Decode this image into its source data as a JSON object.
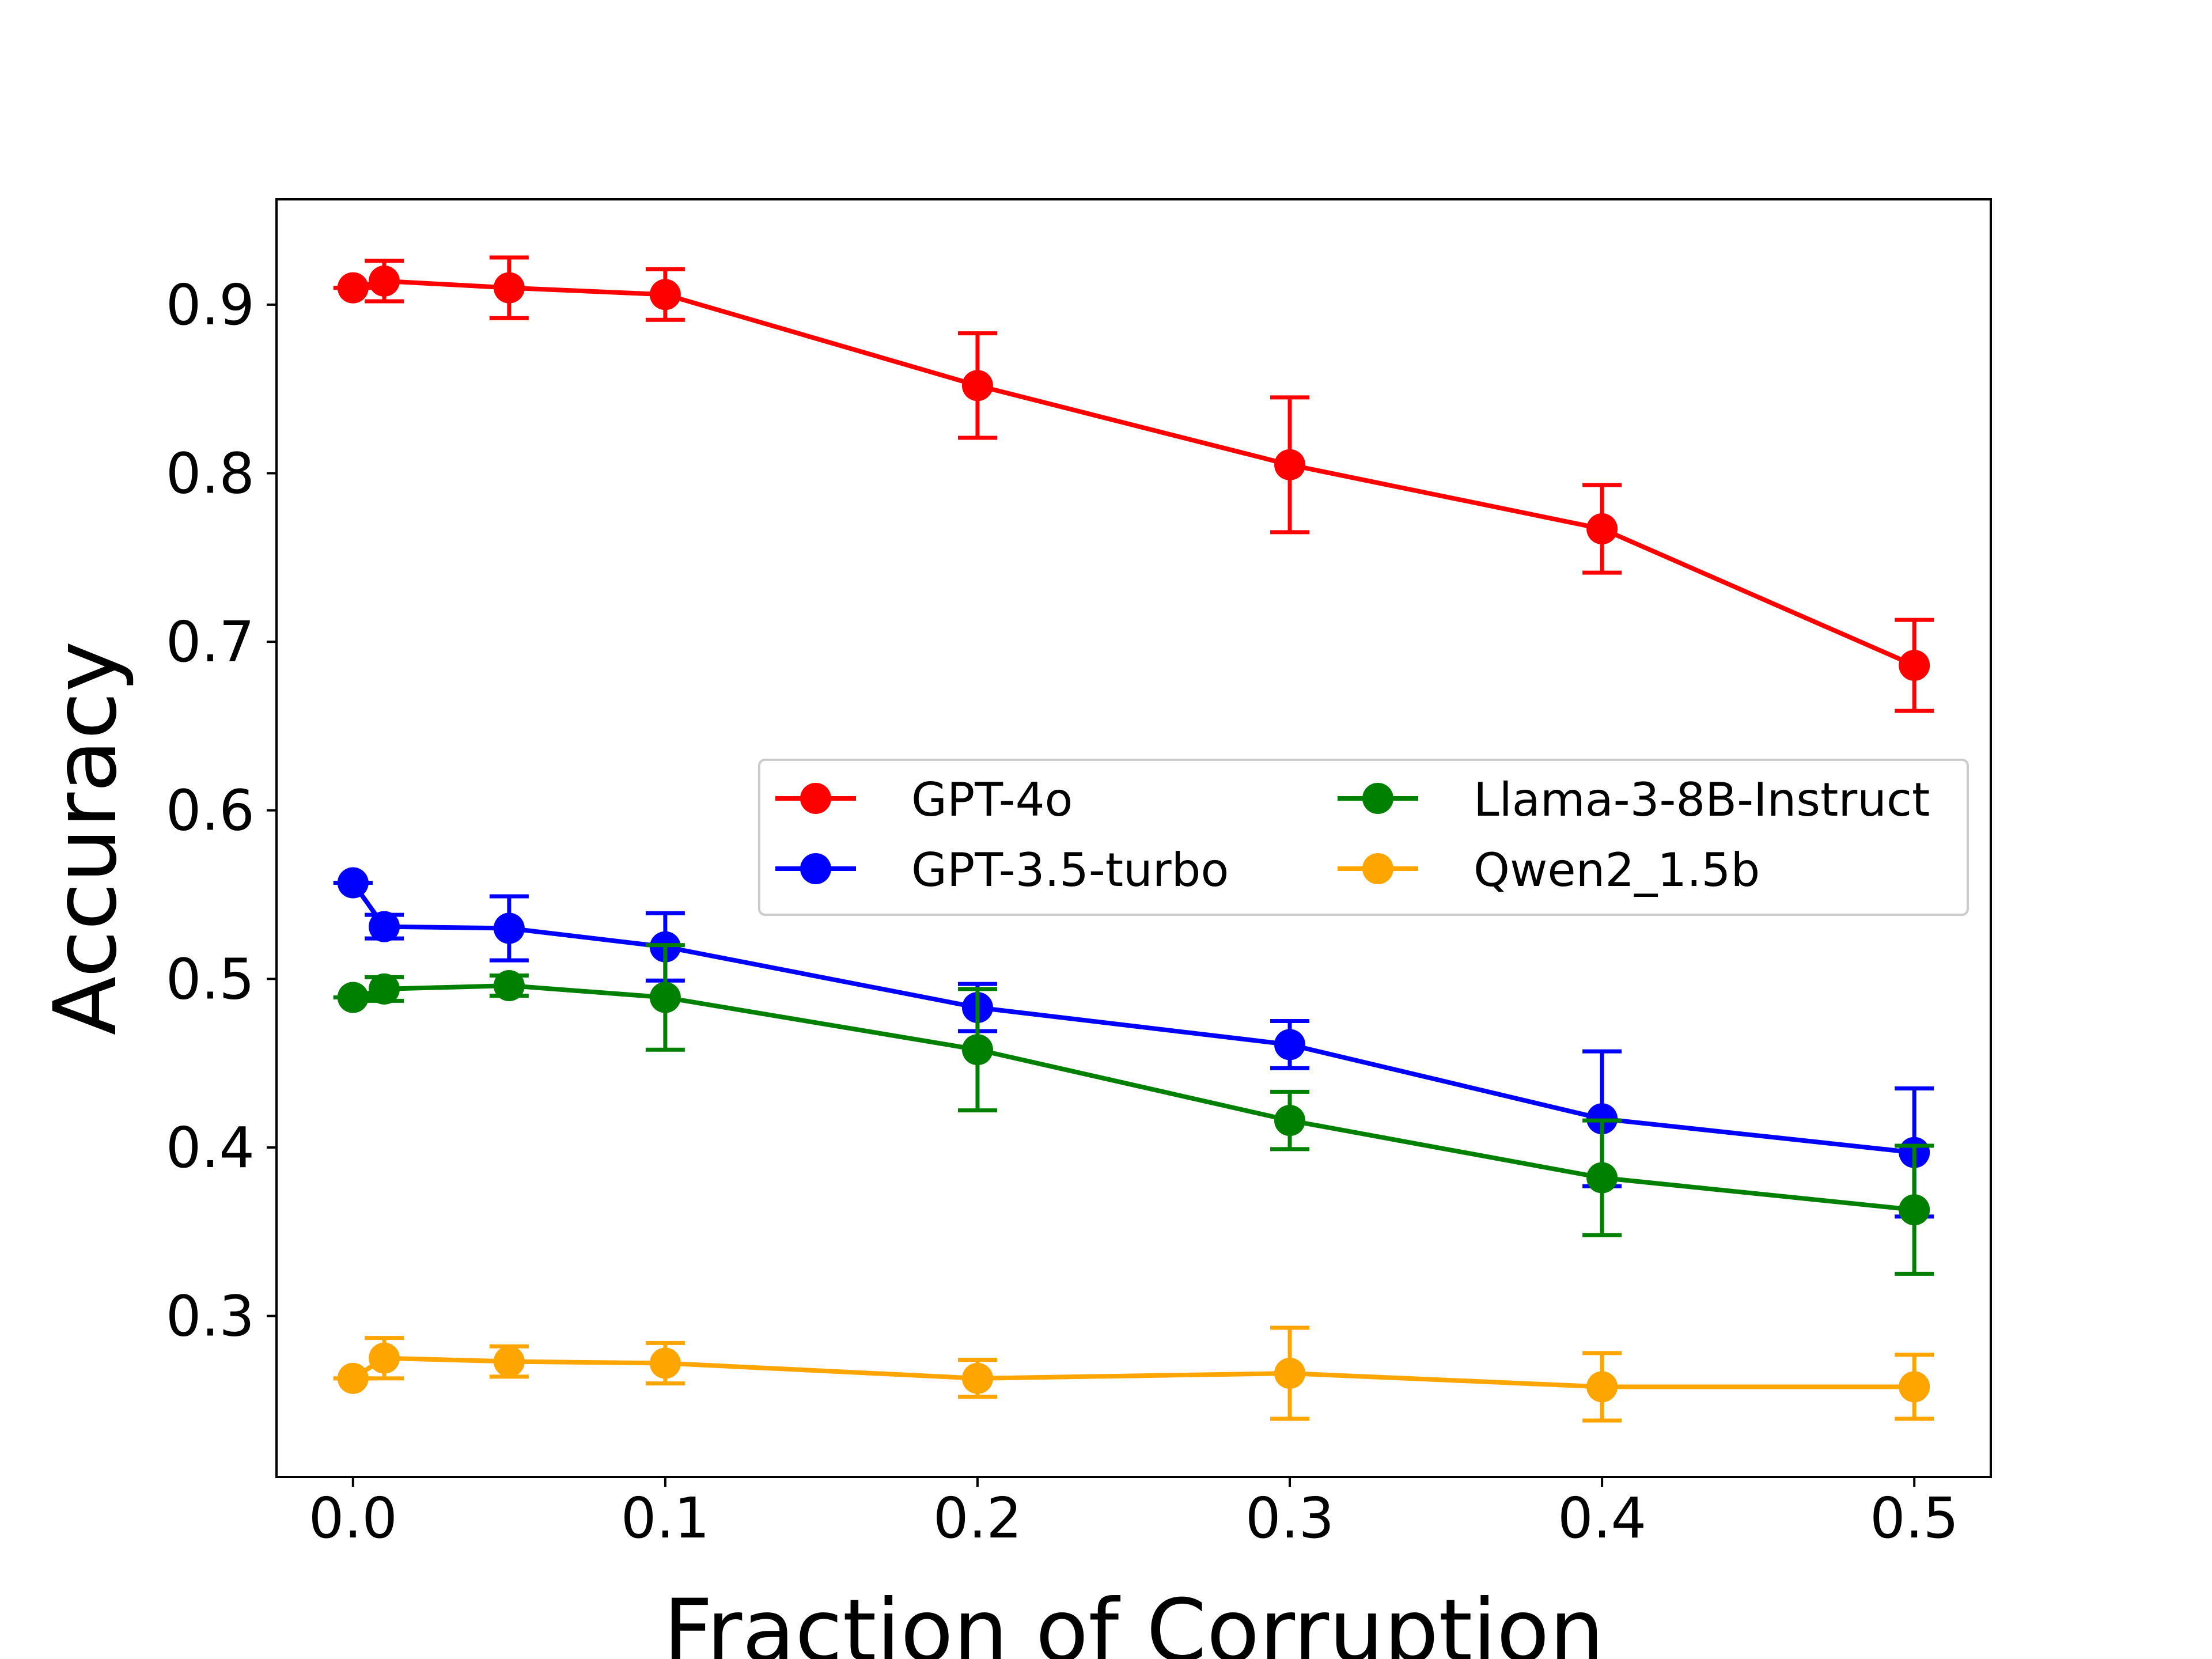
{
  "chart_data": {
    "type": "line",
    "title": "",
    "xlabel": "Fraction of Corruption",
    "ylabel": "Accuracy",
    "xlim": [
      -0.0245,
      0.5245
    ],
    "ylim": [
      0.2045,
      0.9625
    ],
    "xticks": [
      0.0,
      0.1,
      0.2,
      0.3,
      0.4,
      0.5
    ],
    "xtick_labels": [
      "0.0",
      "0.1",
      "0.2",
      "0.3",
      "0.4",
      "0.5"
    ],
    "yticks": [
      0.3,
      0.4,
      0.5,
      0.6,
      0.7,
      0.8,
      0.9
    ],
    "ytick_labels": [
      "0.3",
      "0.4",
      "0.5",
      "0.6",
      "0.7",
      "0.8",
      "0.9"
    ],
    "grid": false,
    "legend": {
      "position": "center-right",
      "columns": 2
    },
    "x": [
      0.0,
      0.01,
      0.05,
      0.1,
      0.2,
      0.3,
      0.4,
      0.5
    ],
    "series": [
      {
        "name": "GPT-4o",
        "color": "#ff0000",
        "values": [
          0.91,
          0.914,
          0.91,
          0.906,
          0.852,
          0.805,
          0.767,
          0.686
        ],
        "errors": [
          0.0,
          0.012,
          0.018,
          0.015,
          0.031,
          0.04,
          0.026,
          0.027
        ]
      },
      {
        "name": "GPT-3.5-turbo",
        "color": "#0000ff",
        "values": [
          0.557,
          0.531,
          0.53,
          0.519,
          0.483,
          0.461,
          0.417,
          0.397
        ],
        "errors": [
          0.0,
          0.007,
          0.019,
          0.02,
          0.014,
          0.014,
          0.04,
          0.038
        ]
      },
      {
        "name": "Llama-3-8B-Instruct",
        "color": "#008000",
        "values": [
          0.489,
          0.494,
          0.496,
          0.489,
          0.458,
          0.416,
          0.382,
          0.363
        ],
        "errors": [
          0.0,
          0.007,
          0.006,
          0.031,
          0.036,
          0.017,
          0.034,
          0.038
        ]
      },
      {
        "name": "Qwen2_1.5b",
        "color": "#ffa500",
        "values": [
          0.263,
          0.275,
          0.273,
          0.272,
          0.263,
          0.266,
          0.258,
          0.258
        ],
        "errors": [
          0.0,
          0.012,
          0.009,
          0.012,
          0.011,
          0.027,
          0.02,
          0.019
        ]
      }
    ]
  }
}
